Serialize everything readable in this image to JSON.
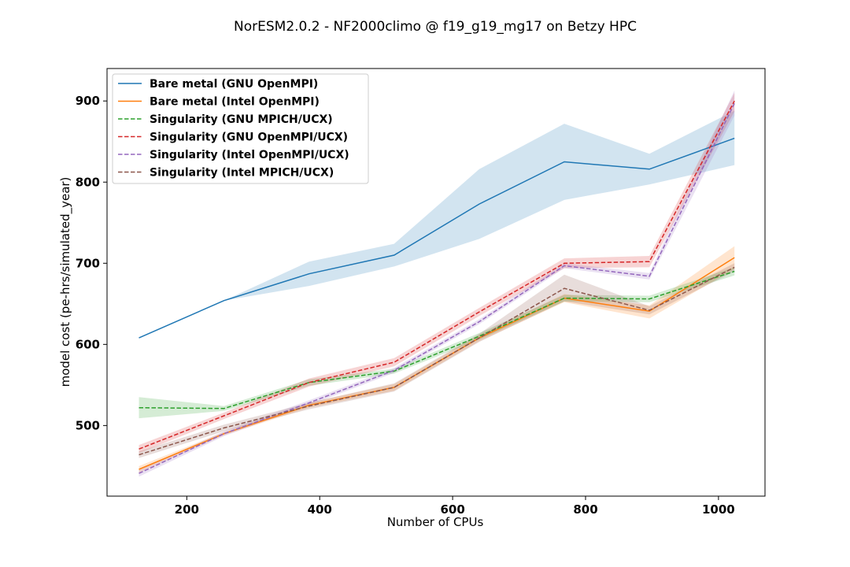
{
  "chart_data": {
    "type": "line",
    "title": "NorESM2.0.2 - NF2000climo @ f19_g19_mg17 on Betzy HPC",
    "xlabel": "Number of CPUs",
    "ylabel": "model cost (pe-hrs/simulated_year)",
    "xlim": [
      80,
      1070
    ],
    "ylim": [
      413,
      940
    ],
    "xticks": [
      200,
      400,
      600,
      800,
      1000
    ],
    "yticks": [
      500,
      600,
      700,
      800,
      900
    ],
    "grid": false,
    "legend_position": "upper-left",
    "x": [
      128,
      256,
      384,
      512,
      640,
      768,
      896,
      1024
    ],
    "series": [
      {
        "name": "Bare metal (GNU OpenMPI)",
        "color": "#1f77b4",
        "linestyle": "solid",
        "values": [
          608,
          654,
          687,
          710,
          773,
          825,
          816,
          854
        ],
        "lower": [
          608,
          654,
          672,
          696,
          730,
          778,
          797,
          821
        ],
        "upper": [
          608,
          654,
          702,
          724,
          816,
          872,
          835,
          888
        ]
      },
      {
        "name": "Bare metal (Intel OpenMPI)",
        "color": "#ff7f0e",
        "linestyle": "solid",
        "values": [
          446,
          490,
          525,
          547,
          608,
          657,
          641,
          707
        ],
        "lower": [
          442,
          488,
          522,
          543,
          604,
          652,
          632,
          693
        ],
        "upper": [
          450,
          492,
          528,
          551,
          612,
          662,
          648,
          721
        ]
      },
      {
        "name": "Singularity (GNU MPICH/UCX)",
        "color": "#2ca02c",
        "linestyle": "dashed",
        "values": [
          522,
          521,
          553,
          567,
          610,
          657,
          656,
          690
        ],
        "lower": [
          509,
          518,
          549,
          564,
          606,
          653,
          652,
          685
        ],
        "upper": [
          535,
          524,
          557,
          570,
          614,
          661,
          660,
          695
        ]
      },
      {
        "name": "Singularity (GNU OpenMPI/UCX)",
        "color": "#d62728",
        "linestyle": "dashed",
        "values": [
          471,
          512,
          553,
          578,
          640,
          700,
          702,
          900
        ],
        "lower": [
          466,
          508,
          548,
          573,
          635,
          694,
          695,
          887
        ],
        "upper": [
          476,
          516,
          558,
          583,
          645,
          706,
          709,
          910
        ]
      },
      {
        "name": "Singularity (Intel OpenMPI/UCX)",
        "color": "#9467bd",
        "linestyle": "dashed",
        "values": [
          441,
          490,
          528,
          568,
          628,
          697,
          684,
          897
        ],
        "lower": [
          437,
          487,
          525,
          565,
          625,
          694,
          680,
          882
        ],
        "upper": [
          445,
          493,
          531,
          571,
          631,
          700,
          688,
          913
        ]
      },
      {
        "name": "Singularity (Intel MPICH/UCX)",
        "color": "#8c564b",
        "linestyle": "dashed",
        "values": [
          464,
          497,
          524,
          547,
          608,
          669,
          642,
          695
        ],
        "lower": [
          460,
          493,
          520,
          542,
          603,
          653,
          637,
          690
        ],
        "upper": [
          468,
          501,
          528,
          552,
          613,
          686,
          647,
          700
        ]
      }
    ]
  }
}
